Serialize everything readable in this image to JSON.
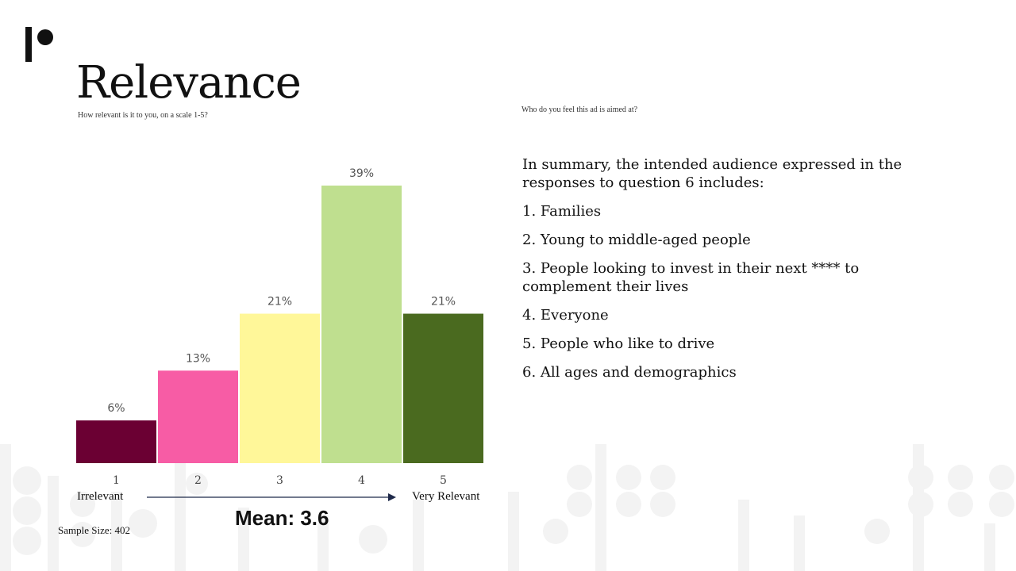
{
  "slide": {
    "title": "Relevance",
    "subtitle": "How relevant is it to you, on a scale 1-5?",
    "right_question": "Who do you feel this ad is aimed at?",
    "scale_low_label": "Irrelevant",
    "scale_high_label": "Very Relevant",
    "mean_label": "Mean: 3.6",
    "sample_size_label": "Sample Size: 402"
  },
  "summary": {
    "intro": "In summary, the intended audience expressed in the responses to question 6 includes:",
    "items": [
      "1. Families",
      "2. Young to middle-aged people",
      "3. People looking to invest in their next **** to complement their lives",
      "4. Everyone",
      "5. People who like to drive",
      "6. All ages and demographics"
    ]
  },
  "chart_data": {
    "type": "bar",
    "title": "",
    "xlabel": "",
    "ylabel": "",
    "categories": [
      "1",
      "2",
      "3",
      "4",
      "5"
    ],
    "values": [
      6,
      13,
      21,
      39,
      21
    ],
    "value_labels": [
      "6%",
      "13%",
      "21%",
      "39%",
      "21%"
    ],
    "colors": [
      "#6b0033",
      "#f75ca5",
      "#fff799",
      "#bfdf8f",
      "#4a6a1f"
    ],
    "ylim": [
      0,
      40
    ],
    "grid": false,
    "legend": "none"
  },
  "colors": {
    "arrow": "#1f2a4a",
    "logo": "#111111",
    "pattern": "#f1f1f1"
  }
}
